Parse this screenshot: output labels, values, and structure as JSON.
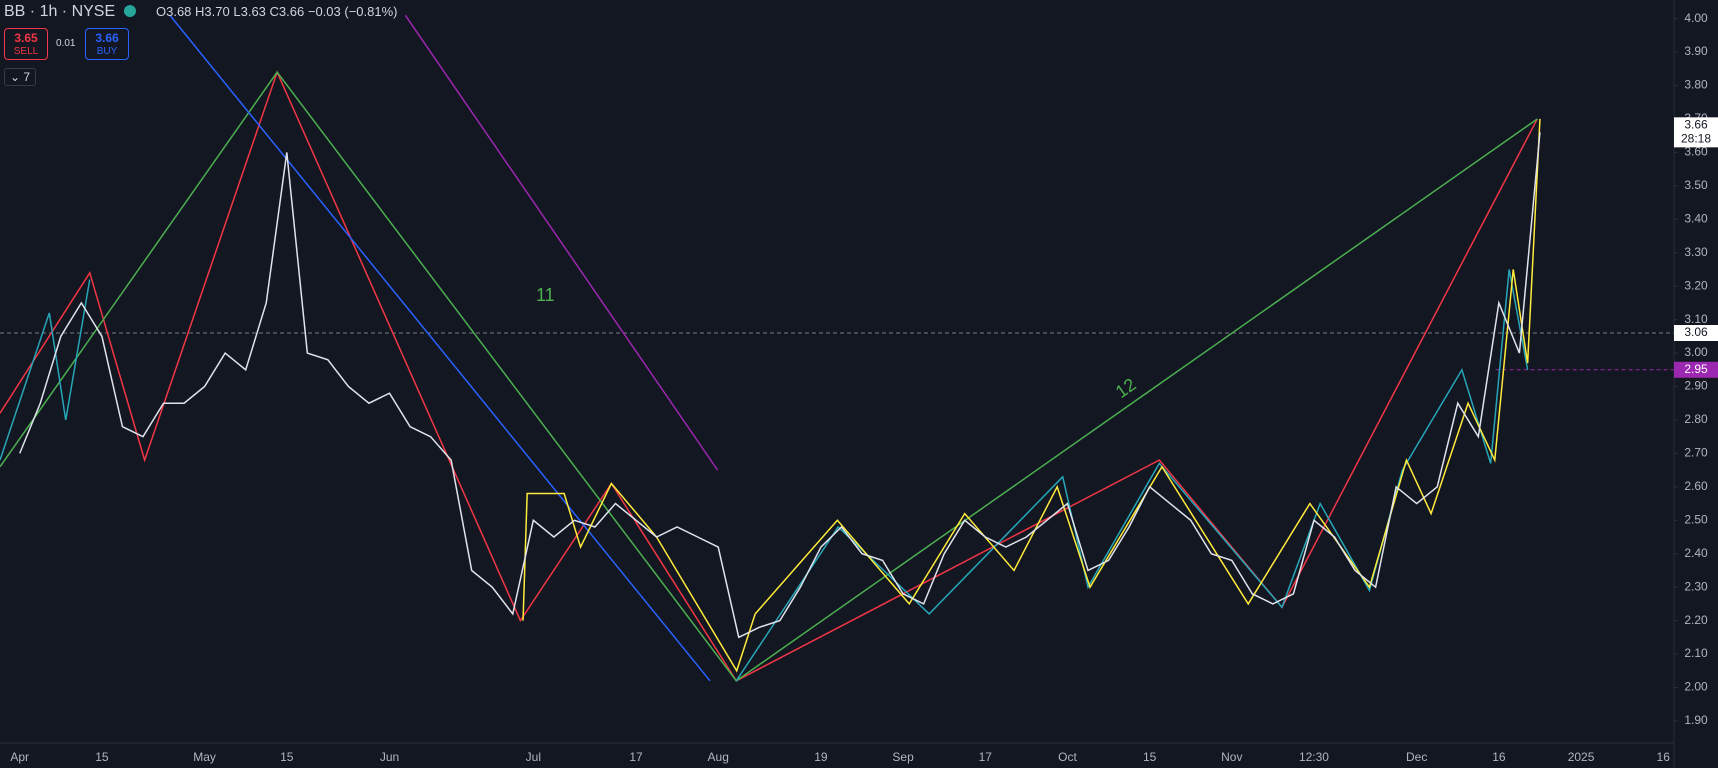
{
  "toolbar": {
    "symbol": "BB · 1h · NYSE",
    "ohlc": [
      "O3.68",
      "H3.70",
      "L3.63",
      "C3.66",
      "−0.03 (−0.81%)"
    ],
    "sell_price": "3.65",
    "sell_label": "SELL",
    "spread": "0.01",
    "buy_price": "3.66",
    "buy_label": "BUY",
    "indicators": "7"
  },
  "chart_data": {
    "type": "line",
    "categories": [
      "Apr",
      null,
      null,
      null,
      "15",
      null,
      null,
      null,
      null,
      "May",
      null,
      null,
      null,
      "15",
      null,
      null,
      null,
      null,
      "Jun",
      null,
      null,
      null,
      null,
      null,
      null,
      "Jul",
      null,
      null,
      null,
      null,
      "17",
      null,
      null,
      null,
      "Aug",
      null,
      null,
      null,
      null,
      "19",
      null,
      null,
      null,
      "Sep",
      null,
      null,
      null,
      "17",
      null,
      null,
      null,
      "Oct",
      null,
      null,
      null,
      "15",
      null,
      null,
      null,
      "Nov",
      null,
      null,
      null,
      "12:30",
      null,
      null,
      null,
      null,
      "Dec",
      null,
      null,
      null,
      "16",
      null,
      null,
      null,
      "2025",
      null,
      null,
      null,
      "16"
    ],
    "series": [
      {
        "name": "BB",
        "color": "#e0e3eb",
        "values": [
          2.7,
          2.85,
          3.05,
          3.15,
          3.05,
          2.78,
          2.75,
          2.85,
          2.85,
          2.9,
          3.0,
          2.95,
          3.15,
          3.6,
          3.0,
          2.98,
          2.9,
          2.85,
          2.88,
          2.78,
          2.75,
          2.68,
          2.35,
          2.3,
          2.22,
          2.5,
          2.45,
          2.5,
          2.48,
          2.55,
          2.5,
          2.45,
          2.48,
          2.45,
          2.42,
          2.15,
          2.18,
          2.2,
          2.3,
          2.42,
          2.48,
          2.4,
          2.38,
          2.28,
          2.25,
          2.4,
          2.5,
          2.45,
          2.42,
          2.45,
          2.5,
          2.55,
          2.35,
          2.38,
          2.48,
          2.6,
          2.55,
          2.5,
          2.4,
          2.38,
          2.28,
          2.25,
          2.28,
          2.5,
          2.45,
          2.35,
          2.3,
          2.6,
          2.55,
          2.6,
          2.85,
          2.75,
          3.15,
          3.0,
          3.66,
          null,
          null,
          null,
          null,
          null,
          null
        ]
      }
    ],
    "ylim": [
      1.9,
      4.0
    ],
    "yticks": [
      {
        "value": 1.9,
        "label": "1.90"
      },
      {
        "value": 2.0,
        "label": "2.00"
      },
      {
        "value": 2.1,
        "label": "2.10"
      },
      {
        "value": 2.2,
        "label": "2.20"
      },
      {
        "value": 2.3,
        "label": "2.30"
      },
      {
        "value": 2.4,
        "label": "2.40"
      },
      {
        "value": 2.5,
        "label": "2.50"
      },
      {
        "value": 2.6,
        "label": "2.60"
      },
      {
        "value": 2.7,
        "label": "2.70"
      },
      {
        "value": 2.8,
        "label": "2.80"
      },
      {
        "value": 2.9,
        "label": "2.90"
      },
      {
        "value": 3.0,
        "label": "3.00"
      },
      {
        "value": 3.1,
        "label": "3.10"
      },
      {
        "value": 3.2,
        "label": "3.20"
      },
      {
        "value": 3.3,
        "label": "3.30"
      },
      {
        "value": 3.4,
        "label": "3.40"
      },
      {
        "value": 3.5,
        "label": "3.50"
      },
      {
        "value": 3.6,
        "label": "3.60"
      },
      {
        "value": 3.7,
        "label": "3.70"
      },
      {
        "value": 3.8,
        "label": "3.80"
      },
      {
        "value": 3.9,
        "label": "3.90"
      },
      {
        "value": 4.0,
        "label": "4.00"
      }
    ],
    "grid": false,
    "drawings": [
      {
        "color": "#f23645",
        "x": [
          -0.96,
          3.41,
          6.08,
          12.53,
          24.37,
          28.8,
          34.88,
          55.47,
          61.44,
          73.87
        ],
        "y": [
          2.82,
          3.24,
          2.68,
          3.84,
          2.2,
          2.61,
          2.02,
          2.68,
          2.24,
          3.7
        ]
      },
      {
        "color": "#4caf50",
        "x": [
          -0.96,
          12.53,
          34.88,
          73.87
        ],
        "y": [
          2.66,
          3.84,
          2.02,
          3.7
        ]
      },
      {
        "color": "#2962ff",
        "x": [
          7.31,
          33.6
        ],
        "y": [
          4.01,
          2.02
        ]
      },
      {
        "color": "#9c27b0",
        "x": [
          18.77,
          33.97
        ],
        "y": [
          4.01,
          2.65
        ]
      },
      {
        "color": "#26a6b8",
        "x": [
          -0.96,
          1.44,
          2.24,
          3.41
        ],
        "y": [
          2.68,
          3.12,
          2.8,
          3.22
        ]
      },
      {
        "color": "#26a6b8",
        "x": [
          34.88,
          39.84,
          44.27,
          50.77,
          52.0,
          55.47,
          61.44,
          63.3,
          65.7,
          67.3,
          70.2,
          71.6,
          72.5,
          73.4
        ],
        "y": [
          2.02,
          2.48,
          2.22,
          2.63,
          2.3,
          2.67,
          2.24,
          2.55,
          2.29,
          2.65,
          2.95,
          2.67,
          3.25,
          2.95
        ]
      },
      {
        "color": "#ffeb3b",
        "x": [
          24.5,
          24.7,
          26.5,
          27.3,
          28.8,
          31.0,
          34.9,
          35.8,
          39.8,
          43.3,
          46.0,
          48.4,
          50.5,
          52.1,
          55.6,
          59.8,
          62.8,
          65.7,
          67.5,
          68.7,
          70.5,
          71.8,
          72.7,
          73.4,
          74.0
        ],
        "y": [
          2.2,
          2.58,
          2.58,
          2.42,
          2.61,
          2.45,
          2.05,
          2.22,
          2.5,
          2.25,
          2.52,
          2.35,
          2.6,
          2.3,
          2.66,
          2.25,
          2.55,
          2.3,
          2.68,
          2.52,
          2.85,
          2.68,
          3.25,
          2.97,
          3.7
        ]
      }
    ],
    "annotations": [
      "11",
      "12"
    ],
    "price_lines": [
      {
        "value": 3.06,
        "color": "#787b86"
      },
      {
        "value": 2.95,
        "color": "#9c27b0"
      }
    ],
    "last_price": 3.66,
    "countdown": "28:18"
  }
}
